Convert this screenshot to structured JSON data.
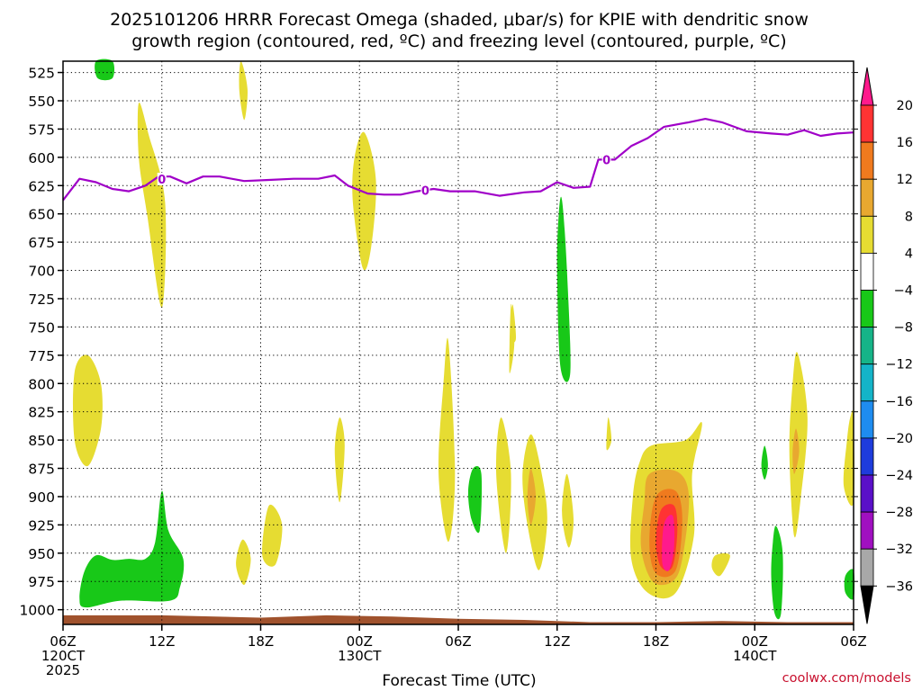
{
  "chart_data": {
    "type": "time-height contour",
    "title_line1": "2025101206 HRRR Forecast Omega (shaded, μbar/s) for KPIE with dendritic snow",
    "title_line2": "growth region (contoured, red, ºC) and freezing level (contoured, purple, ºC)",
    "xlabel": "Forecast Time (UTC)",
    "credit": "coolwx.com/models",
    "x_range_hours": [
      0,
      48
    ],
    "y_range_mb": [
      515,
      1013
    ],
    "y_ticks": [
      525,
      550,
      575,
      600,
      625,
      650,
      675,
      700,
      725,
      750,
      775,
      800,
      825,
      850,
      875,
      900,
      925,
      950,
      975,
      1000
    ],
    "x_ticks": [
      {
        "hour": 0,
        "lines": [
          "06Z",
          "120CT",
          "2025"
        ]
      },
      {
        "hour": 6,
        "lines": [
          "12Z"
        ]
      },
      {
        "hour": 12,
        "lines": [
          "18Z"
        ]
      },
      {
        "hour": 18,
        "lines": [
          "00Z",
          "130CT"
        ]
      },
      {
        "hour": 24,
        "lines": [
          "06Z"
        ]
      },
      {
        "hour": 30,
        "lines": [
          "12Z"
        ]
      },
      {
        "hour": 36,
        "lines": [
          "18Z"
        ]
      },
      {
        "hour": 42,
        "lines": [
          "00Z",
          "140CT"
        ]
      },
      {
        "hour": 48,
        "lines": [
          "06Z"
        ]
      }
    ],
    "colorbar": {
      "labels": [
        "20",
        "16",
        "12",
        "8",
        "4",
        "−4",
        "−8",
        "−12",
        "−16",
        "−20",
        "−24",
        "−28",
        "−32",
        "−36"
      ],
      "colors": [
        "#ff1a8c",
        "#ff3333",
        "#f07a1e",
        "#e8a830",
        "#e6dc32",
        "#ffffff",
        "#18c818",
        "#16b488",
        "#14b4c8",
        "#1e8cf0",
        "#1e3cdc",
        "#5a10c8",
        "#a010c0",
        "#a8a8a8"
      ],
      "end_colors": [
        "#ff1a8c",
        "#000000"
      ]
    },
    "freezing_level": {
      "label": "0",
      "points": [
        [
          0,
          638
        ],
        [
          1,
          619
        ],
        [
          2,
          622
        ],
        [
          3,
          628
        ],
        [
          4,
          630
        ],
        [
          5,
          625
        ],
        [
          5.8,
          617
        ],
        [
          6.5,
          617
        ],
        [
          7.5,
          623
        ],
        [
          8.5,
          617
        ],
        [
          9.5,
          617
        ],
        [
          11,
          621
        ],
        [
          12.5,
          620
        ],
        [
          14,
          619
        ],
        [
          15.5,
          619
        ],
        [
          16.5,
          616
        ],
        [
          17.3,
          625
        ],
        [
          18.5,
          632
        ],
        [
          19.5,
          633
        ],
        [
          20.5,
          633
        ],
        [
          21.5,
          630
        ],
        [
          22.5,
          628
        ],
        [
          23.5,
          630
        ],
        [
          25,
          630
        ],
        [
          26.5,
          634
        ],
        [
          28,
          631
        ],
        [
          29,
          630
        ],
        [
          30,
          622
        ],
        [
          31,
          627
        ],
        [
          32,
          626
        ],
        [
          32.5,
          602
        ],
        [
          33.5,
          602
        ],
        [
          34.5,
          590
        ],
        [
          35.5,
          583
        ],
        [
          36.5,
          573
        ],
        [
          38,
          569
        ],
        [
          39,
          566
        ],
        [
          40,
          569
        ],
        [
          41.5,
          577
        ],
        [
          43,
          579
        ],
        [
          44,
          580
        ],
        [
          45,
          576
        ],
        [
          46,
          581
        ],
        [
          47,
          579
        ],
        [
          48,
          578
        ]
      ],
      "label_positions": [
        [
          6,
          620
        ],
        [
          22,
          630
        ],
        [
          33,
          603
        ]
      ]
    },
    "omega_regions": [
      {
        "v": 4,
        "pts": [
          [
            1.5,
            775
          ],
          [
            2.3,
            800
          ],
          [
            2.3,
            840
          ],
          [
            1.5,
            873
          ],
          [
            0.7,
            850
          ],
          [
            0.7,
            790
          ]
        ]
      },
      {
        "v": 4,
        "pts": [
          [
            4.6,
            552
          ],
          [
            5.2,
            580
          ],
          [
            6.2,
            640
          ],
          [
            6.0,
            733
          ],
          [
            5.1,
            650
          ],
          [
            4.6,
            600
          ]
        ]
      },
      {
        "v": 4,
        "pts": [
          [
            10.8,
            515
          ],
          [
            11.2,
            540
          ],
          [
            11.0,
            567
          ],
          [
            10.7,
            540
          ]
        ]
      },
      {
        "v": 4,
        "pts": [
          [
            18.3,
            578
          ],
          [
            19.0,
            620
          ],
          [
            18.7,
            680
          ],
          [
            18.2,
            698
          ],
          [
            17.6,
            640
          ],
          [
            17.7,
            600
          ]
        ]
      },
      {
        "v": 4,
        "pts": [
          [
            12.5,
            908
          ],
          [
            13.3,
            925
          ],
          [
            12.9,
            960
          ],
          [
            12.1,
            952
          ]
        ]
      },
      {
        "v": 4,
        "pts": [
          [
            10.9,
            938
          ],
          [
            11.4,
            955
          ],
          [
            11.0,
            978
          ],
          [
            10.5,
            960
          ]
        ]
      },
      {
        "v": 4,
        "pts": [
          [
            16.8,
            830
          ],
          [
            17.1,
            855
          ],
          [
            16.8,
            905
          ],
          [
            16.5,
            860
          ]
        ]
      },
      {
        "v": 4,
        "pts": [
          [
            23.4,
            763
          ],
          [
            23.8,
            880
          ],
          [
            23.4,
            940
          ],
          [
            22.8,
            880
          ],
          [
            23.1,
            800
          ]
        ]
      },
      {
        "v": 4,
        "pts": [
          [
            26.6,
            830
          ],
          [
            27.2,
            880
          ],
          [
            26.9,
            950
          ],
          [
            26.3,
            880
          ]
        ]
      },
      {
        "v": 4,
        "pts": [
          [
            27.2,
            730
          ],
          [
            27.4,
            765
          ],
          [
            27.1,
            790
          ]
        ]
      },
      {
        "v": 4,
        "pts": [
          [
            28.4,
            845
          ],
          [
            29.0,
            875
          ],
          [
            29.4,
            920
          ],
          [
            28.9,
            965
          ],
          [
            28.2,
            925
          ],
          [
            27.9,
            880
          ]
        ]
      },
      {
        "v": 4,
        "pts": [
          [
            30.6,
            880
          ],
          [
            31.0,
            920
          ],
          [
            30.7,
            945
          ],
          [
            30.3,
            915
          ]
        ]
      },
      {
        "v": 4,
        "pts": [
          [
            33.1,
            830
          ],
          [
            33.3,
            850
          ],
          [
            33.0,
            858
          ]
        ]
      },
      {
        "v": 4,
        "pts": [
          [
            35.7,
            855
          ],
          [
            37.8,
            850
          ],
          [
            38.8,
            835
          ],
          [
            38.2,
            880
          ],
          [
            38.3,
            935
          ],
          [
            37.2,
            985
          ],
          [
            35.5,
            985
          ],
          [
            34.5,
            955
          ],
          [
            34.6,
            900
          ],
          [
            35.0,
            870
          ]
        ]
      },
      {
        "v": 4,
        "pts": [
          [
            39.6,
            952
          ],
          [
            40.5,
            952
          ],
          [
            39.9,
            970
          ],
          [
            39.4,
            963
          ]
        ]
      },
      {
        "v": 4,
        "pts": [
          [
            44.6,
            773
          ],
          [
            45.2,
            830
          ],
          [
            44.8,
            900
          ],
          [
            44.4,
            935
          ],
          [
            44.1,
            860
          ],
          [
            44.3,
            800
          ]
        ]
      },
      {
        "v": 4,
        "pts": [
          [
            47.8,
            830
          ],
          [
            48,
            830
          ],
          [
            48,
            905
          ],
          [
            47.4,
            890
          ],
          [
            47.6,
            850
          ]
        ]
      },
      {
        "v": 4,
        "pts": [
          [
            27.3,
            730
          ],
          [
            27.5,
            760
          ],
          [
            27.2,
            760
          ]
        ]
      },
      {
        "v": 8,
        "pts": [
          [
            28.4,
            875
          ],
          [
            28.7,
            900
          ],
          [
            28.4,
            925
          ],
          [
            28.2,
            900
          ]
        ]
      },
      {
        "v": 8,
        "pts": [
          [
            44.5,
            840
          ],
          [
            44.7,
            860
          ],
          [
            44.4,
            880
          ],
          [
            44.3,
            860
          ]
        ]
      },
      {
        "v": 8,
        "pts": [
          [
            35.6,
            880
          ],
          [
            37.3,
            878
          ],
          [
            38.0,
            900
          ],
          [
            37.6,
            955
          ],
          [
            37.0,
            975
          ],
          [
            35.8,
            975
          ],
          [
            35.1,
            945
          ],
          [
            35.3,
            905
          ]
        ]
      },
      {
        "v": 12,
        "pts": [
          [
            36.0,
            900
          ],
          [
            37.2,
            895
          ],
          [
            37.6,
            920
          ],
          [
            37.2,
            965
          ],
          [
            36.0,
            968
          ],
          [
            35.6,
            940
          ]
        ]
      },
      {
        "v": 16,
        "pts": [
          [
            36.3,
            912
          ],
          [
            37.1,
            908
          ],
          [
            37.3,
            930
          ],
          [
            37.0,
            962
          ],
          [
            36.3,
            962
          ],
          [
            36.0,
            940
          ]
        ]
      },
      {
        "v": 20,
        "pts": [
          [
            36.6,
            920
          ],
          [
            37.05,
            918
          ],
          [
            37.1,
            945
          ],
          [
            36.8,
            965
          ],
          [
            36.4,
            960
          ],
          [
            36.4,
            935
          ]
        ]
      },
      {
        "v": -4,
        "pts": [
          [
            2.0,
            515
          ],
          [
            3.0,
            515
          ],
          [
            3.0,
            530
          ],
          [
            2.1,
            530
          ]
        ]
      },
      {
        "v": -4,
        "pts": [
          [
            6.0,
            895
          ],
          [
            6.4,
            930
          ],
          [
            7.3,
            955
          ],
          [
            7.1,
            980
          ],
          [
            6.5,
            992
          ],
          [
            3.5,
            992
          ],
          [
            1.4,
            998
          ],
          [
            1.0,
            990
          ],
          [
            1.3,
            966
          ],
          [
            2.0,
            952
          ],
          [
            3.0,
            956
          ],
          [
            4.0,
            955
          ],
          [
            5.0,
            955
          ],
          [
            5.6,
            940
          ]
        ]
      },
      {
        "v": -4,
        "pts": [
          [
            30.3,
            638
          ],
          [
            30.6,
            700
          ],
          [
            30.8,
            790
          ],
          [
            30.2,
            785
          ],
          [
            30.0,
            700
          ],
          [
            30.1,
            650
          ]
        ]
      },
      {
        "v": -4,
        "pts": [
          [
            24.9,
            875
          ],
          [
            25.4,
            880
          ],
          [
            25.3,
            930
          ],
          [
            24.8,
            920
          ],
          [
            24.6,
            895
          ]
        ]
      },
      {
        "v": -4,
        "pts": [
          [
            42.6,
            855
          ],
          [
            42.8,
            872
          ],
          [
            42.6,
            885
          ],
          [
            42.4,
            872
          ]
        ]
      },
      {
        "v": -4,
        "pts": [
          [
            43.3,
            926
          ],
          [
            43.7,
            950
          ],
          [
            43.6,
            1003
          ],
          [
            43.2,
            1003
          ],
          [
            43.0,
            970
          ],
          [
            43.1,
            940
          ]
        ]
      },
      {
        "v": -4,
        "pts": [
          [
            47.5,
            970
          ],
          [
            48,
            965
          ],
          [
            48,
            990
          ],
          [
            47.5,
            985
          ]
        ]
      }
    ],
    "terrain": {
      "color": "#a0522d",
      "points": [
        [
          0,
          1005
        ],
        [
          6,
          1005
        ],
        [
          12,
          1007
        ],
        [
          16,
          1005
        ],
        [
          20,
          1006
        ],
        [
          24,
          1008
        ],
        [
          28,
          1009
        ],
        [
          32,
          1011
        ],
        [
          36,
          1011
        ],
        [
          40,
          1010
        ],
        [
          44,
          1011
        ],
        [
          48,
          1011
        ]
      ]
    }
  }
}
